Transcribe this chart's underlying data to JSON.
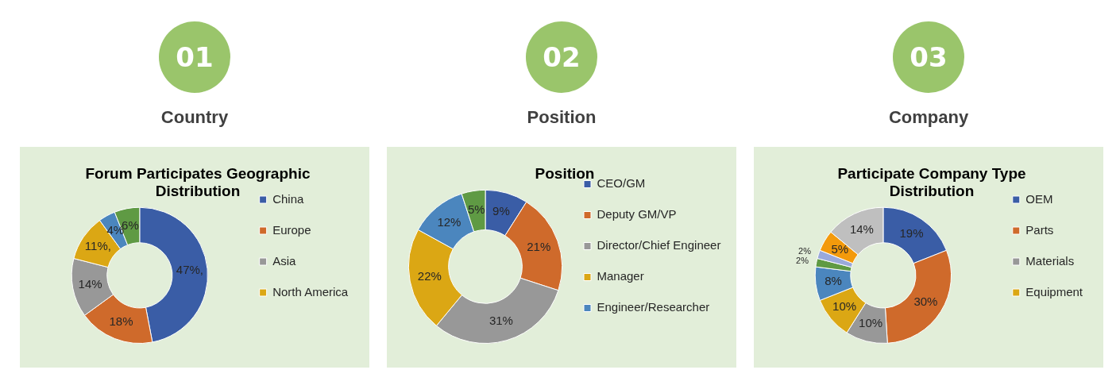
{
  "chart_data": [
    {
      "type": "donut",
      "title": "Forum Participates Geographic Distribution",
      "annotations": [
        "01",
        "Country"
      ],
      "categories": [
        "China",
        "Europe",
        "Asia",
        "North America",
        null,
        null
      ],
      "values": [
        47,
        18,
        14,
        11,
        4,
        6
      ],
      "colors": [
        "#3a5da6",
        "#cf6a2b",
        "#989898",
        "#dba714",
        "#4b86be",
        "#5f9a44"
      ],
      "value_labels": [
        "47%,",
        "18%",
        "14%",
        "11%,",
        "4%",
        "6%"
      ],
      "legend": "right"
    },
    {
      "type": "donut",
      "title": "Position",
      "annotations": [
        "02",
        "Position"
      ],
      "categories": [
        "CEO/GM",
        "Deputy GM/VP",
        "Director/Chief Engineer",
        "Manager",
        "Engineer/Researcher",
        null
      ],
      "values": [
        9,
        21,
        31,
        22,
        12,
        5
      ],
      "colors": [
        "#3a5da6",
        "#cf6a2b",
        "#989898",
        "#dba714",
        "#4b86be",
        "#5f9a44"
      ],
      "value_labels": [
        "9%",
        "21%",
        "31%",
        "22%",
        "12%",
        "5%"
      ],
      "legend": "right"
    },
    {
      "type": "donut",
      "title": "Participate Company Type Distribution",
      "annotations": [
        "03",
        "Company"
      ],
      "categories": [
        "OEM",
        "Parts",
        "Materials",
        "Equipment",
        null,
        null,
        null,
        null,
        null
      ],
      "values": [
        19,
        30,
        10,
        10,
        8,
        2,
        2,
        5,
        14
      ],
      "colors": [
        "#3a5da6",
        "#cf6a2b",
        "#989898",
        "#dba714",
        "#4b86be",
        "#5f9a44",
        "#9aa9da",
        "#f39a0c",
        "#bfbfbf"
      ],
      "value_labels": [
        "19%",
        "30%",
        "10%",
        "10%",
        "8%",
        "2%",
        "2%",
        "5%",
        "14%"
      ],
      "legend": "right"
    }
  ]
}
